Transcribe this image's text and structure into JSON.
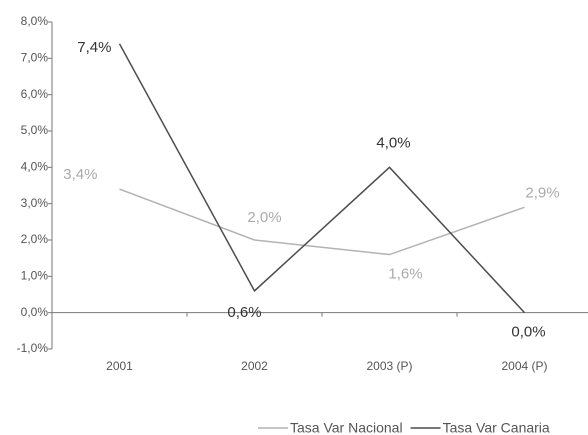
{
  "chart_data": {
    "type": "line",
    "categories": [
      "2001",
      "2002",
      "2003 (P)",
      "2004 (P)"
    ],
    "series": [
      {
        "name": "Tasa Var Nacional",
        "color": "#b3b3b3",
        "values": [
          3.4,
          2.0,
          1.6,
          2.9
        ],
        "value_labels": [
          "3,4%",
          "2,0%",
          "1,6%",
          "2,9%"
        ]
      },
      {
        "name": "Tasa Var Canaria",
        "color": "#4d4d4d",
        "values": [
          7.4,
          0.6,
          4.0,
          0.0
        ],
        "value_labels": [
          "7,4%",
          "0,6%",
          "4,0%",
          "0,0%"
        ]
      }
    ],
    "ylim": [
      -1,
      8
    ],
    "yticks": [
      {
        "value": -1,
        "label": "-1,0%"
      },
      {
        "value": 0,
        "label": "0,0%"
      },
      {
        "value": 1,
        "label": "1,0%"
      },
      {
        "value": 2,
        "label": "2,0%"
      },
      {
        "value": 3,
        "label": "3,0%"
      },
      {
        "value": 4,
        "label": "4,0%"
      },
      {
        "value": 5,
        "label": "5,0%"
      },
      {
        "value": 6,
        "label": "6,0%"
      },
      {
        "value": 7,
        "label": "7,0%"
      },
      {
        "value": 8,
        "label": "8,0%"
      }
    ],
    "legend": "bottom"
  }
}
